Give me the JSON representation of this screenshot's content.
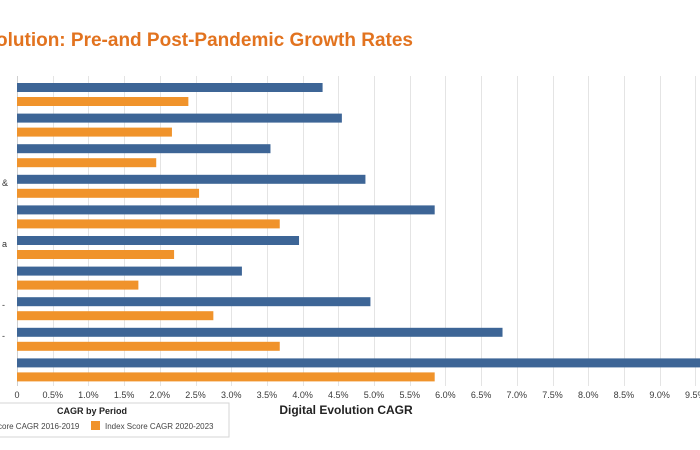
{
  "chart_data": {
    "type": "bar",
    "orientation": "horizontal",
    "title": "olution: Pre-and Post-Pandemic Growth Rates",
    "title_color": "#e2731f",
    "xlabel": "Digital Evolution CAGR",
    "ylabel": "",
    "xlim": [
      0,
      9.5
    ],
    "xticks": [
      "0",
      "0.5%",
      "1.0%",
      "1.5%",
      "2.0%",
      "2.5%",
      "3.0%",
      "3.5%",
      "4.0%",
      "4.5%",
      "5.0%",
      "5.5%",
      "6.0%",
      "6.5%",
      "7.0%",
      "7.5%",
      "8.0%",
      "8.5%",
      "9.0%",
      "9.5%"
    ],
    "xtick_values": [
      0,
      0.5,
      1.0,
      1.5,
      2.0,
      2.5,
      3.0,
      3.5,
      4.0,
      4.5,
      5.0,
      5.5,
      6.0,
      6.5,
      7.0,
      7.5,
      8.0,
      8.5,
      9.0,
      9.5
    ],
    "grid": true,
    "category_label_fragments": [
      "",
      "",
      "",
      "&",
      "",
      "a",
      "",
      "-",
      "-",
      ""
    ],
    "series": [
      {
        "name": "core CAGR 2016-2019",
        "color": "#3d6596",
        "values": [
          4.28,
          4.55,
          3.55,
          4.88,
          5.85,
          3.95,
          3.15,
          4.95,
          6.8,
          9.8
        ]
      },
      {
        "name": "Index Score CAGR 2020-2023",
        "color": "#f0932b",
        "values": [
          2.4,
          2.17,
          1.95,
          2.55,
          3.68,
          2.2,
          1.7,
          2.75,
          3.68,
          5.85
        ]
      }
    ],
    "legend": {
      "title": "CAGR by Period",
      "position": "bottom-left"
    }
  }
}
